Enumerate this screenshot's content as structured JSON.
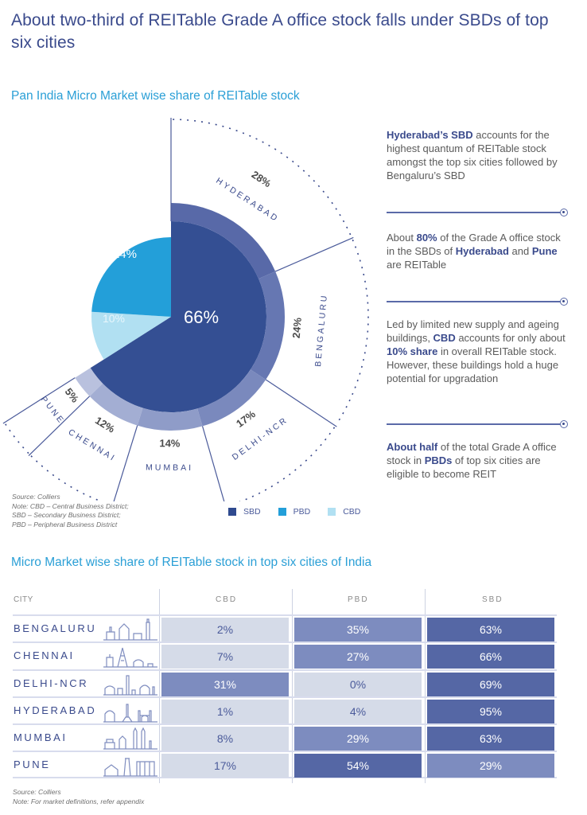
{
  "header": {
    "title": "About two-third of REITable Grade A office stock falls under SBDs of top six cities"
  },
  "chart_data": [
    {
      "type": "pie",
      "title": "Pan India Micro Market wise share of REITable stock",
      "slices": [
        {
          "name": "SBD",
          "value": 66,
          "label": "66%",
          "color": "#344f93"
        },
        {
          "name": "PBD",
          "value": 24,
          "label": "24%",
          "color": "#239fd9"
        },
        {
          "name": "CBD",
          "value": 10,
          "label": "10%",
          "color": "#b1e0f2"
        }
      ],
      "sbd_breakdown": {
        "description": "City-wise split of SBD REITable stock (outer ring)",
        "segments": [
          {
            "city": "HYDERABAD",
            "value": 28,
            "label": "28%",
            "color": "#5869a8"
          },
          {
            "city": "BENGALURU",
            "value": 24,
            "label": "24%",
            "color": "#6677b2"
          },
          {
            "city": "DELHI-NCR",
            "value": 17,
            "label": "17%",
            "color": "#7a89bd"
          },
          {
            "city": "MUMBAI",
            "value": 14,
            "label": "14%",
            "color": "#8f9cc8"
          },
          {
            "city": "CHENNAI",
            "value": 12,
            "label": "12%",
            "color": "#a3aed3"
          },
          {
            "city": "PUNE",
            "value": 5,
            "label": "5%",
            "color": "#b9c1de"
          }
        ]
      },
      "legend": [
        {
          "label": "SBD",
          "color": "#2f4a8f"
        },
        {
          "label": "PBD",
          "color": "#239fd9"
        },
        {
          "label": "CBD",
          "color": "#b1e0f2"
        }
      ],
      "legend_position": "bottom-right"
    },
    {
      "type": "table",
      "title": "Micro Market wise share of REITable stock in top six cities of India",
      "columns": [
        "CITY",
        "CBD",
        "PBD",
        "SBD"
      ],
      "rows": [
        {
          "city": "BENGALURU",
          "CBD": 2,
          "PBD": 35,
          "SBD": 63
        },
        {
          "city": "CHENNAI",
          "CBD": 7,
          "PBD": 27,
          "SBD": 66
        },
        {
          "city": "DELHI-NCR",
          "CBD": 31,
          "PBD": 0,
          "SBD": 69
        },
        {
          "city": "HYDERABAD",
          "CBD": 1,
          "PBD": 4,
          "SBD": 95
        },
        {
          "city": "MUMBAI",
          "CBD": 8,
          "PBD": 29,
          "SBD": 63
        },
        {
          "city": "PUNE",
          "CBD": 17,
          "PBD": 54,
          "SBD": 29
        }
      ]
    }
  ],
  "pie_section": {
    "subtitle": "Pan India Micro Market wise share of REITable stock",
    "notes": [
      "Source: Colliers",
      "Note: CBD – Central Business District;",
      "SBD – Secondary Business District;",
      "PBD – Peripheral Business District"
    ],
    "legend": [
      {
        "label": "SBD",
        "color": "#2f4a8f"
      },
      {
        "label": "PBD",
        "color": "#239fd9"
      },
      {
        "label": "CBD",
        "color": "#b1e0f2"
      }
    ]
  },
  "callouts": [
    {
      "parts": [
        {
          "t": "Hyderabad’s SBD",
          "b": true
        },
        {
          "t": " accounts for the highest quantum of REITable stock amongst the top six cities followed by Bengaluru’s SBD",
          "b": false
        }
      ]
    },
    {
      "parts": [
        {
          "t": "About ",
          "b": false
        },
        {
          "t": "80%",
          "b": true
        },
        {
          "t": " of the Grade A office stock in the SBDs of ",
          "b": false
        },
        {
          "t": "Hyderabad",
          "b": true
        },
        {
          "t": " and ",
          "b": false
        },
        {
          "t": "Pune",
          "b": true
        },
        {
          "t": " are REITable",
          "b": false
        }
      ]
    },
    {
      "parts": [
        {
          "t": "Led by limited new supply and ageing buildings, ",
          "b": false
        },
        {
          "t": "CBD",
          "b": true
        },
        {
          "t": " accounts for only about ",
          "b": false
        },
        {
          "t": "10% share",
          "b": true
        },
        {
          "t": " in overall REITable stock. However, these buildings hold a huge potential for upgradation",
          "b": false
        }
      ]
    },
    {
      "parts": [
        {
          "t": "About half",
          "b": true
        },
        {
          "t": " of the total Grade A office stock in ",
          "b": false
        },
        {
          "t": "PBDs",
          "b": true
        },
        {
          "t": " of top six cities are eligible to become REIT",
          "b": false
        }
      ]
    }
  ],
  "table_section": {
    "subtitle": "Micro Market wise share of REITable stock in top six cities of India",
    "headers": {
      "city": "CITY",
      "cbd": "CBD",
      "pbd": "PBD",
      "sbd": "SBD"
    },
    "rows": [
      {
        "city": "BENGALURU",
        "cbd": "2%",
        "pbd": "35%",
        "sbd": "63%"
      },
      {
        "city": "CHENNAI",
        "cbd": "7%",
        "pbd": "27%",
        "sbd": "66%"
      },
      {
        "city": "DELHI-NCR",
        "cbd": "31%",
        "pbd": "0%",
        "sbd": "69%"
      },
      {
        "city": "HYDERABAD",
        "cbd": "1%",
        "pbd": "4%",
        "sbd": "95%"
      },
      {
        "city": "MUMBAI",
        "cbd": "8%",
        "pbd": "29%",
        "sbd": "63%"
      },
      {
        "city": "PUNE",
        "cbd": "17%",
        "pbd": "54%",
        "sbd": "29%"
      }
    ],
    "notes": [
      "Source: Colliers",
      "Note: For market definitions, refer appendix"
    ]
  },
  "colors": {
    "title": "#3a4a8c",
    "subtitle": "#2a9fd6",
    "cell_light": "#d5dbe8",
    "cell_mid": "#7d8cbf",
    "cell_dark": "#5567a5"
  }
}
